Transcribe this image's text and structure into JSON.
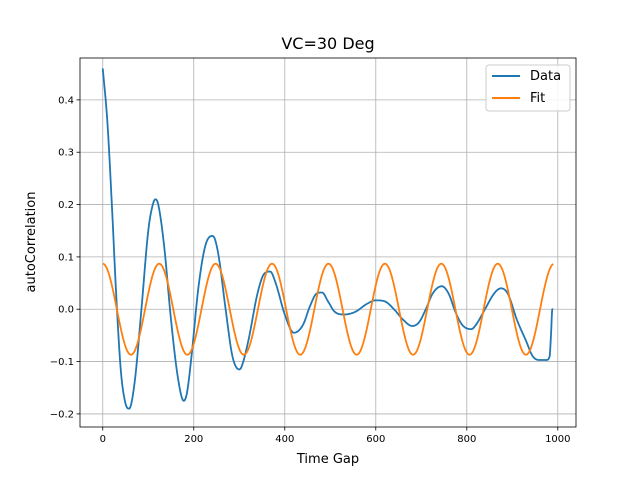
{
  "chart_data": {
    "type": "line",
    "title": "VC=30 Deg",
    "xlabel": "Time Gap",
    "ylabel": "autoCorrelation",
    "xlim": [
      -50,
      1040
    ],
    "ylim": [
      -0.225,
      0.48
    ],
    "xticks": [
      0,
      200,
      400,
      600,
      800,
      1000
    ],
    "yticks": [
      -0.2,
      -0.1,
      0.0,
      0.1,
      0.2,
      0.3,
      0.4
    ],
    "xtick_labels": [
      "0",
      "200",
      "400",
      "600",
      "800",
      "1000"
    ],
    "ytick_labels": [
      "−0.2",
      "−0.1",
      "0.0",
      "0.1",
      "0.2",
      "0.3",
      "0.4"
    ],
    "grid": true,
    "legend_position": "top-right",
    "colors": {
      "data": "#1f77b4",
      "fit": "#ff7f0e"
    },
    "series": [
      {
        "name": "Data",
        "x": [
          0,
          10,
          20,
          30,
          40,
          50,
          58,
          70,
          85,
          100,
          110,
          116,
          122,
          135,
          150,
          165,
          178,
          185,
          195,
          210,
          225,
          240,
          245,
          255,
          270,
          285,
          300,
          305,
          320,
          340,
          355,
          368,
          380,
          400,
          420,
          440,
          455,
          470,
          482,
          495,
          510,
          530,
          555,
          580,
          600,
          620,
          640,
          660,
          680,
          695,
          710,
          725,
          745,
          760,
          775,
          790,
          810,
          820,
          840,
          860,
          875,
          890,
          910,
          930,
          945,
          960,
          975,
          982,
          985,
          988,
          990
        ],
        "y": [
          0.46,
          0.36,
          0.2,
          0.02,
          -0.12,
          -0.18,
          -0.19,
          -0.14,
          0.0,
          0.15,
          0.2,
          0.21,
          0.2,
          0.12,
          -0.02,
          -0.13,
          -0.175,
          -0.16,
          -0.09,
          0.04,
          0.12,
          0.14,
          0.137,
          0.1,
          0.0,
          -0.09,
          -0.115,
          -0.11,
          -0.06,
          0.03,
          0.068,
          0.072,
          0.05,
          -0.01,
          -0.045,
          -0.03,
          0.005,
          0.03,
          0.032,
          0.015,
          -0.005,
          -0.01,
          -0.005,
          0.01,
          0.017,
          0.015,
          0.0,
          -0.02,
          -0.032,
          -0.025,
          0.0,
          0.03,
          0.044,
          0.03,
          -0.005,
          -0.03,
          -0.038,
          -0.03,
          0.0,
          0.03,
          0.04,
          0.03,
          -0.02,
          -0.06,
          -0.09,
          -0.097,
          -0.097,
          -0.09,
          -0.05,
          0.0,
          0.0
        ]
      },
      {
        "name": "Fit",
        "equation_visible": false,
        "amplitude": 0.087,
        "period": 124,
        "x_start": 0,
        "x_end": 990
      }
    ]
  }
}
